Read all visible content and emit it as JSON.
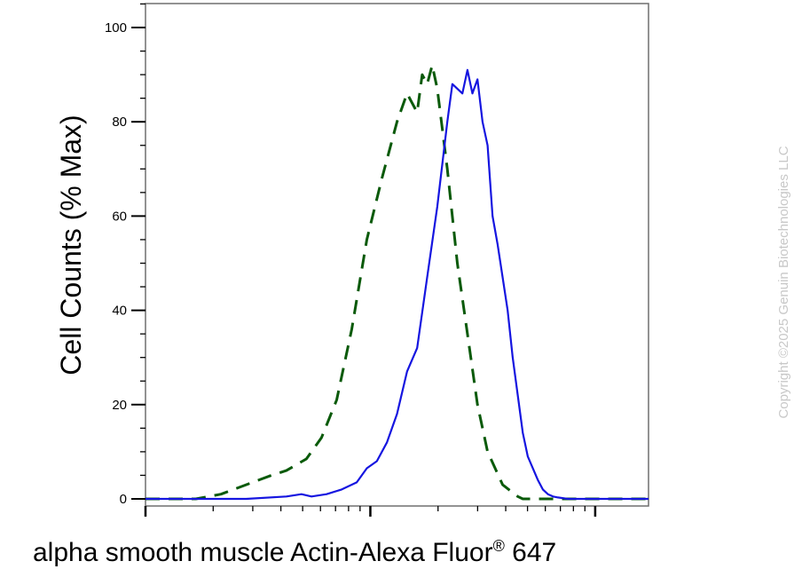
{
  "chart_data": {
    "type": "line",
    "ylabel": "Cell Counts (% Max)",
    "xlabel_main": "alpha smooth muscle Actin-Alexa Fluor",
    "xlabel_sup": "®",
    "xlabel_end": " 647",
    "y_ticks": [
      "0",
      "20",
      "40",
      "60",
      "80",
      "100"
    ],
    "ylim": [
      0,
      105
    ],
    "x_scale": "log",
    "x_ticklabels_shown": false,
    "grid": false,
    "series": [
      {
        "style": "dashed",
        "color": "#0a5a0a",
        "x": [
          0.0,
          0.1,
          0.15,
          0.2,
          0.25,
          0.28,
          0.32,
          0.35,
          0.38,
          0.41,
          0.44,
          0.47,
          0.5,
          0.52,
          0.54,
          0.55,
          0.56,
          0.57,
          0.58,
          0.6,
          0.62,
          0.64,
          0.66,
          0.68,
          0.71,
          0.74,
          0.75,
          1.0
        ],
        "y": [
          0,
          0,
          1,
          3,
          5,
          6,
          8.5,
          13,
          21,
          36,
          55,
          68,
          80,
          86,
          82,
          90,
          88,
          92,
          87,
          70,
          50,
          35,
          20,
          10,
          3,
          0.5,
          0,
          0
        ]
      },
      {
        "style": "solid",
        "color": "#1515e0",
        "x": [
          0.0,
          0.2,
          0.28,
          0.31,
          0.33,
          0.36,
          0.39,
          0.42,
          0.44,
          0.46,
          0.48,
          0.5,
          0.52,
          0.54,
          0.56,
          0.58,
          0.6,
          0.61,
          0.63,
          0.64,
          0.65,
          0.66,
          0.67,
          0.68,
          0.69,
          0.7,
          0.72,
          0.73,
          0.74,
          0.75,
          0.76,
          0.78,
          0.79,
          0.8,
          0.81,
          0.82,
          0.84,
          0.86,
          0.88,
          0.9,
          1.0
        ],
        "y": [
          0,
          0,
          0.5,
          1,
          0.5,
          1,
          2,
          3.5,
          6.5,
          8,
          12,
          18,
          27,
          32,
          47,
          62,
          80,
          88,
          86,
          91,
          86,
          89,
          80,
          75,
          60,
          54,
          40,
          30,
          22,
          14,
          9,
          4,
          2,
          1,
          0.5,
          0.3,
          0,
          0,
          0,
          0,
          0
        ]
      }
    ]
  },
  "copyright": "Copyright ©2025 Genuin Biotechnologies LLC"
}
